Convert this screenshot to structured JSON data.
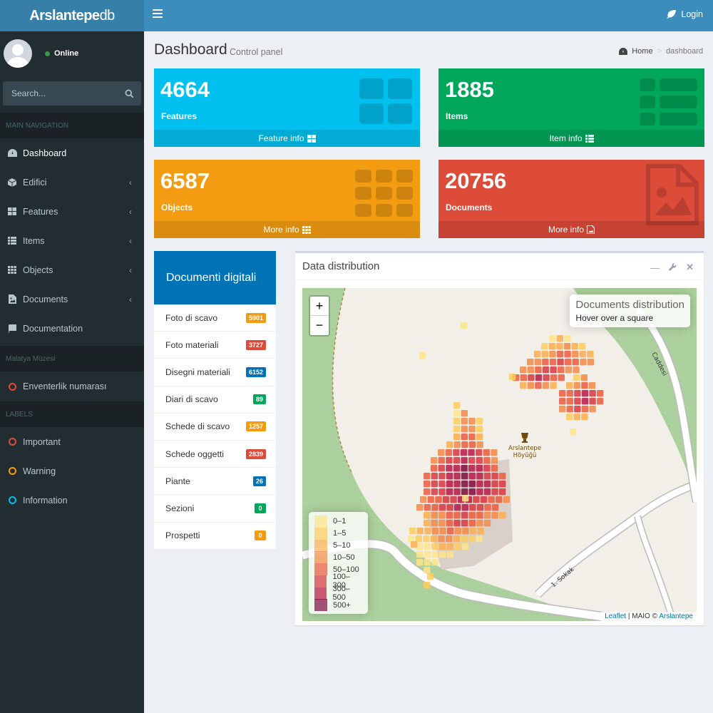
{
  "brand": {
    "bold": "Arslantepe",
    "light": "db"
  },
  "user": {
    "status": "Online"
  },
  "search": {
    "placeholder": "Search..."
  },
  "nav": {
    "header_main": "MAIN NAVIGATION",
    "items": [
      {
        "label": "Dashboard",
        "icon": "dashboard-icon"
      },
      {
        "label": "Edifici",
        "icon": "cube-icon"
      },
      {
        "label": "Features",
        "icon": "th-large-icon"
      },
      {
        "label": "Items",
        "icon": "th-list-icon"
      },
      {
        "label": "Objects",
        "icon": "th-icon"
      },
      {
        "label": "Documents",
        "icon": "file-image-icon"
      },
      {
        "label": "Documentation",
        "icon": "book-icon"
      }
    ],
    "header_museum": "Malatya Müzesi",
    "museum_item": "Enventerlik numarası",
    "header_labels": "LABELS",
    "labels": [
      {
        "label": "Important",
        "color": "#dd4b39"
      },
      {
        "label": "Warning",
        "color": "#f39c12"
      },
      {
        "label": "Information",
        "color": "#00c0ef"
      }
    ]
  },
  "topbar": {
    "login": "Login"
  },
  "header": {
    "title": "Dashboard",
    "subtitle": "Control panel",
    "breadcrumb_home": "Home",
    "breadcrumb_current": "dashboard"
  },
  "boxes": [
    {
      "value": "4664",
      "label": "Features",
      "footer": "Feature info",
      "color": "#00c0ef"
    },
    {
      "value": "1885",
      "label": "Items",
      "footer": "Item info",
      "color": "#00a65a"
    },
    {
      "value": "6587",
      "label": "Objects",
      "footer": "More info",
      "color": "#f39c12"
    },
    {
      "value": "20756",
      "label": "Documents",
      "footer": "More info",
      "color": "#dd4b39"
    }
  ],
  "documenti": {
    "title": "Documenti digitali",
    "rows": [
      {
        "label": "Foto di scavo",
        "count": "5901",
        "color": "#f39c12"
      },
      {
        "label": "Foto materiali",
        "count": "3727",
        "color": "#dd4b39"
      },
      {
        "label": "Disegni materiali",
        "count": "6152",
        "color": "#0073b7"
      },
      {
        "label": "Diari di scavo",
        "count": "89",
        "color": "#00a65a"
      },
      {
        "label": "Schede di scavo",
        "count": "1257",
        "color": "#f39c12"
      },
      {
        "label": "Schede oggetti",
        "count": "2839",
        "color": "#dd4b39"
      },
      {
        "label": "Piante",
        "count": "26",
        "color": "#0073b7"
      },
      {
        "label": "Sezioni",
        "count": "0",
        "color": "#00a65a"
      },
      {
        "label": "Prospetti",
        "count": "0",
        "color": "#f39c12"
      }
    ]
  },
  "map_panel": {
    "title": "Data distribution",
    "zoom_in": "+",
    "zoom_out": "−",
    "info_title": "Documents distribution",
    "info_sub": "Hover over a square",
    "place_line1": "Arslantepe",
    "place_line2": "Höyüğü",
    "road_1": "1. Sokak",
    "road_2": "Caddesi",
    "legend": [
      {
        "label": "0–1",
        "color": "#fee48a"
      },
      {
        "label": "1–5",
        "color": "#fdcc5c"
      },
      {
        "label": "5–10",
        "color": "#fbae4f"
      },
      {
        "label": "10–50",
        "color": "#f58a45"
      },
      {
        "label": "50–100",
        "color": "#ec5a3c"
      },
      {
        "label": "100–300",
        "color": "#d9363f"
      },
      {
        "label": "300–500",
        "color": "#b81845"
      },
      {
        "label": "500+",
        "color": "#800b3e"
      }
    ],
    "attribution_link": "Leaflet",
    "attribution_mid": " | MAIO © ",
    "attribution_src": "Arslantepe"
  }
}
